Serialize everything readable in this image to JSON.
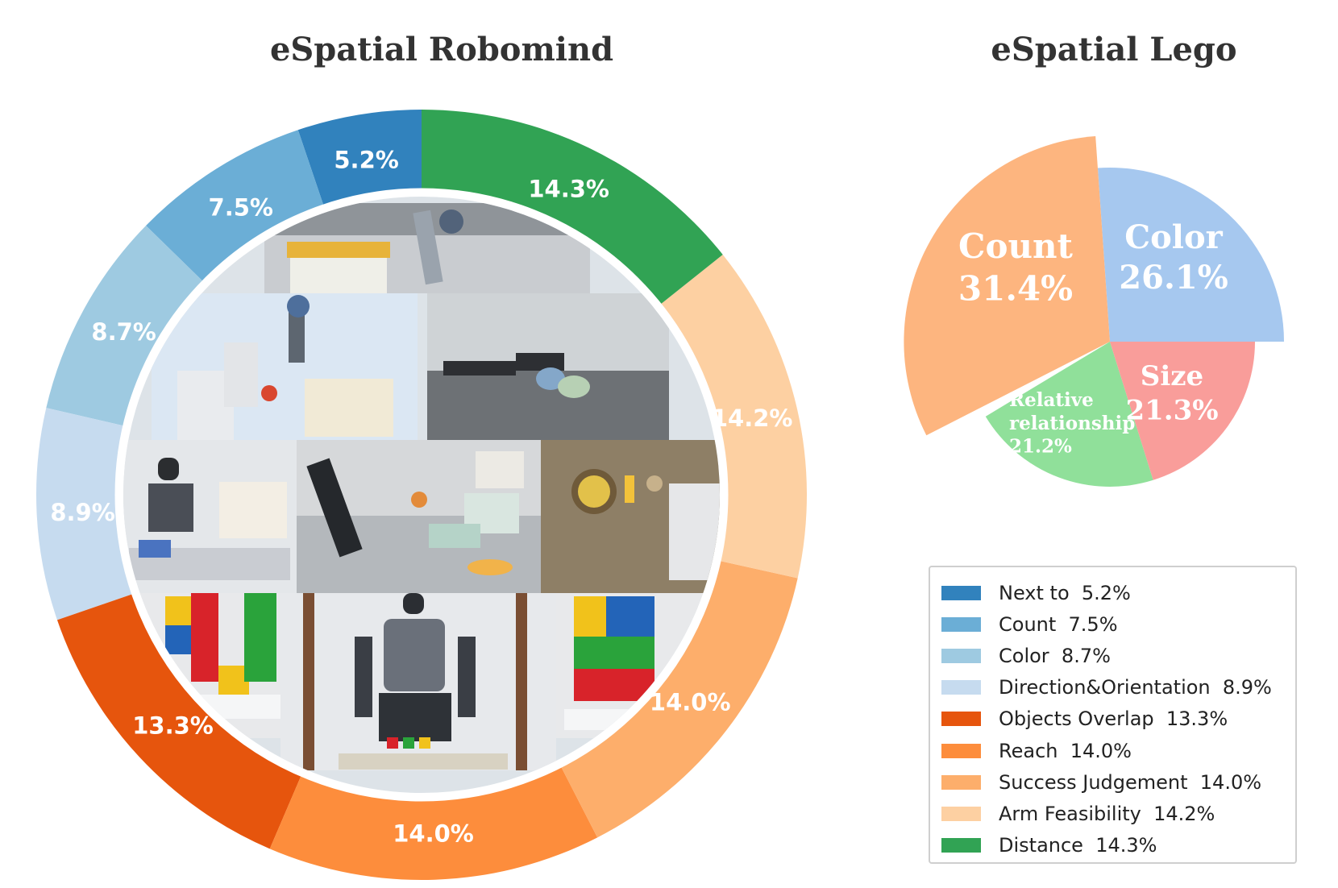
{
  "titles": {
    "left": "eSpatial Robomind",
    "right": "eSpatial Lego"
  },
  "photo_collage": {
    "description_icon": "robot-photo-collage"
  },
  "chart_data": [
    {
      "type": "donut",
      "title": "eSpatial Robomind",
      "categories": [
        "Next to",
        "Count",
        "Color",
        "Direction&Orientation",
        "Objects Overlap",
        "Reach",
        "Success Judgement",
        "Arm Feasibility",
        "Distance"
      ],
      "values": [
        5.2,
        7.5,
        8.7,
        8.9,
        13.3,
        14.0,
        14.0,
        14.2,
        14.3
      ],
      "labels": [
        "5.2%",
        "7.5%",
        "8.7%",
        "8.9%",
        "13.3%",
        "14.0%",
        "14.0%",
        "14.2%",
        "14.3%"
      ],
      "colors": [
        "#3182bd",
        "#6baed6",
        "#9ecae1",
        "#c6dbef",
        "#e6550d",
        "#fd8d3c",
        "#fdae6b",
        "#fdd0a2",
        "#31a354"
      ],
      "legend": {
        "placement": "lower-right",
        "entries": [
          "Next to  5.2%",
          "Count  7.5%",
          "Color  8.7%",
          "Direction&Orientation  8.9%",
          "Objects Overlap  13.3%",
          "Reach  14.0%",
          "Success Judgement  14.0%",
          "Arm Feasibility  14.2%",
          "Distance  14.3%"
        ]
      }
    },
    {
      "type": "pie",
      "title": "eSpatial Lego",
      "categories": [
        "Count",
        "Color",
        "Size",
        "Relative relationship"
      ],
      "values": [
        31.4,
        26.1,
        21.3,
        21.2
      ],
      "radius_scale": [
        1.42,
        1.2,
        1.0,
        1.0
      ],
      "label_lines": [
        [
          "Count",
          "31.4%"
        ],
        [
          "Color",
          "26.1%"
        ],
        [
          "Size",
          "21.3%"
        ],
        [
          "Relative",
          "relationship",
          "21.2%"
        ]
      ],
      "colors": [
        "#fdb57f",
        "#a6c8ef",
        "#f99d9a",
        "#90e09a"
      ]
    }
  ]
}
